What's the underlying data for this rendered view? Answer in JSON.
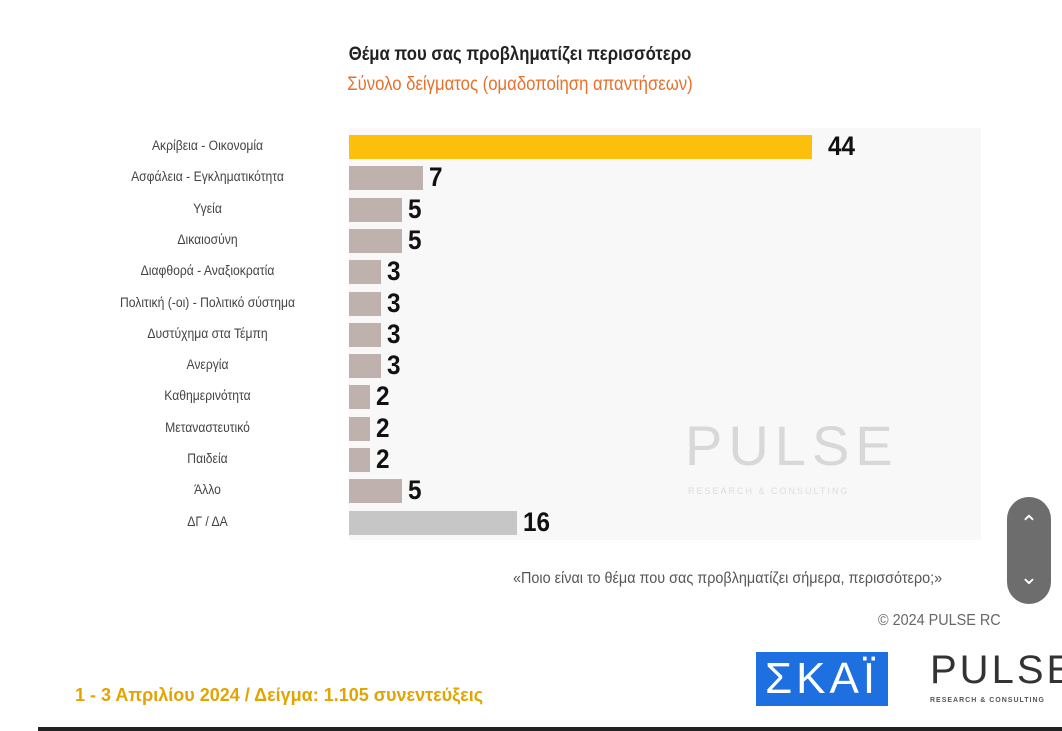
{
  "chart_data": {
    "type": "bar",
    "orientation": "horizontal",
    "title": "Θέμα που σας προβληματίζει περισσότερο",
    "subtitle": "Σύνολο δείγματος (ομαδοποίηση απαντήσεων)",
    "categories": [
      "Ακρίβεια - Οικονομία",
      "Ασφάλεια - Εγκληματικότητα",
      "Υγεία",
      "Δικαιοσύνη",
      "Διαφθορά - Αναξιοκρατία",
      "Πολιτική (-οι) - Πολιτικό σύστημα",
      "Δυστύχημα στα Τέμπη",
      "Ανεργία",
      "Καθημερινότητα",
      "Μεταναστευτικό",
      "Παιδεία",
      "Άλλο",
      "ΔΓ / ΔΑ"
    ],
    "values": [
      44,
      7,
      5,
      5,
      3,
      3,
      3,
      3,
      2,
      2,
      2,
      5,
      16
    ],
    "colors": [
      "#fbbf0c",
      "#bfb1ae",
      "#bfb1ae",
      "#bfb1ae",
      "#bfb1ae",
      "#bfb1ae",
      "#bfb1ae",
      "#bfb1ae",
      "#bfb1ae",
      "#bfb1ae",
      "#bfb1ae",
      "#bfb1ae",
      "#c6c6c6"
    ],
    "xlim": [
      0,
      60
    ],
    "grid": false,
    "legend": "none"
  },
  "watermark": "PULSE",
  "watermark_sub": "RESEARCH & CONSULTING",
  "question": "«Ποιο είναι το θέμα που σας προβληματίζει σήμερα, περισσότερο;»",
  "copyright": "© 2024 PULSE RC",
  "footer": "1 - 3  Απριλίου 2024  /  Δείγμα:  1.105 συνεντεύξεις",
  "logos": {
    "skai": "ΣΚΑΪ",
    "pulse": "PULSE",
    "pulse_sub": "RESEARCH & CONSULTING"
  },
  "scroll": {
    "up_icon": "chevron-up-icon",
    "down_icon": "chevron-down-icon"
  }
}
